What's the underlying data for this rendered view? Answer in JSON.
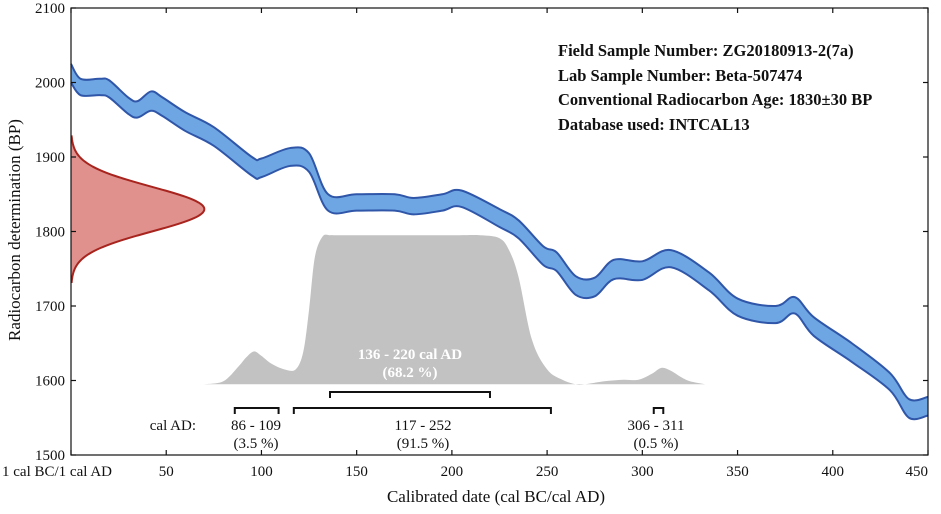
{
  "chart_data": {
    "type": "area",
    "xlabel": "Calibrated date (cal BC/cal AD)",
    "ylabel": "Radiocarbon determination (BP)",
    "xlim": [
      0,
      450
    ],
    "ylim": [
      1500,
      2100
    ],
    "x_ticks": [
      0,
      50,
      100,
      150,
      200,
      250,
      300,
      350,
      400,
      450
    ],
    "x_tick_labels": [
      "1 cal BC/1 cal AD",
      "50",
      "100",
      "150",
      "200",
      "250",
      "300",
      "350",
      "400",
      "450"
    ],
    "y_ticks": [
      1500,
      1600,
      1700,
      1800,
      1900,
      2000,
      2100
    ],
    "y_tick_labels": [
      "1500",
      "1600",
      "1700",
      "1800",
      "1900",
      "2000",
      "2100"
    ],
    "info_lines": [
      "Field Sample Number: ZG20180913-2(7a)",
      "Lab Sample Number: Beta-507474",
      "Conventional Radiocarbon Age: 1830±30 BP",
      "Database used: INTCAL13"
    ],
    "calibration_curve": {
      "name": "INTCAL13",
      "color": "#6ea6e3",
      "edge_color": "#2f56a8",
      "x": [
        0,
        5,
        15,
        20,
        30,
        35,
        42,
        48,
        60,
        75,
        95,
        100,
        115,
        125,
        135,
        150,
        170,
        180,
        195,
        205,
        225,
        235,
        248,
        255,
        265,
        275,
        285,
        300,
        315,
        335,
        350,
        370,
        380,
        390,
        410,
        430,
        440,
        450
      ],
      "upper": [
        2025,
        2005,
        2005,
        2003,
        1980,
        1975,
        1988,
        1980,
        1960,
        1940,
        1900,
        1898,
        1912,
        1905,
        1850,
        1850,
        1850,
        1845,
        1850,
        1855,
        1830,
        1815,
        1780,
        1772,
        1740,
        1738,
        1762,
        1760,
        1775,
        1745,
        1710,
        1700,
        1712,
        1685,
        1650,
        1610,
        1575,
        1578
      ],
      "lower": [
        2000,
        1983,
        1983,
        1980,
        1958,
        1953,
        1962,
        1955,
        1935,
        1915,
        1875,
        1873,
        1888,
        1880,
        1828,
        1828,
        1828,
        1823,
        1828,
        1833,
        1806,
        1791,
        1755,
        1747,
        1715,
        1713,
        1736,
        1735,
        1752,
        1721,
        1687,
        1677,
        1690,
        1660,
        1625,
        1587,
        1550,
        1553
      ]
    },
    "radiocarbon_age": {
      "mean": 1830,
      "sigma": 30,
      "color": "#e0908d",
      "edge_color": "#a8241e",
      "peak_width_years": 70
    },
    "probability_distribution": {
      "color": "#c2c2c2",
      "baseline": 1595,
      "peak_height": 200,
      "x": [
        70,
        80,
        88,
        92,
        96,
        100,
        105,
        112,
        118,
        122,
        125,
        128,
        132,
        136,
        140,
        160,
        200,
        215,
        225,
        230,
        235,
        242,
        250,
        258,
        265,
        270,
        280,
        290,
        298,
        305,
        310,
        315,
        320,
        325,
        333
      ],
      "density": [
        0,
        0.02,
        0.12,
        0.18,
        0.22,
        0.19,
        0.14,
        0.1,
        0.1,
        0.22,
        0.5,
        0.85,
        0.99,
        1.0,
        1.0,
        1.0,
        1.0,
        1.0,
        0.98,
        0.9,
        0.72,
        0.3,
        0.1,
        0.03,
        0.0,
        0.0,
        0.02,
        0.03,
        0.03,
        0.07,
        0.11,
        0.09,
        0.05,
        0.02,
        0
      ]
    },
    "ranges": [
      {
        "level": "1sigma",
        "start": 136,
        "end": 220,
        "label": "136 - 220 cal AD",
        "percent": "(68.2 %)"
      },
      {
        "level": "2sigma",
        "start": 86,
        "end": 109,
        "label": "86 - 109",
        "percent": "(3.5 %)"
      },
      {
        "level": "2sigma",
        "start": 117,
        "end": 252,
        "label": "117 - 252",
        "percent": "(91.5 %)"
      },
      {
        "level": "2sigma",
        "start": 306,
        "end": 311,
        "label": "306 - 311",
        "percent": "(0.5 %)"
      }
    ],
    "cal_ad_label": "cal AD:"
  }
}
